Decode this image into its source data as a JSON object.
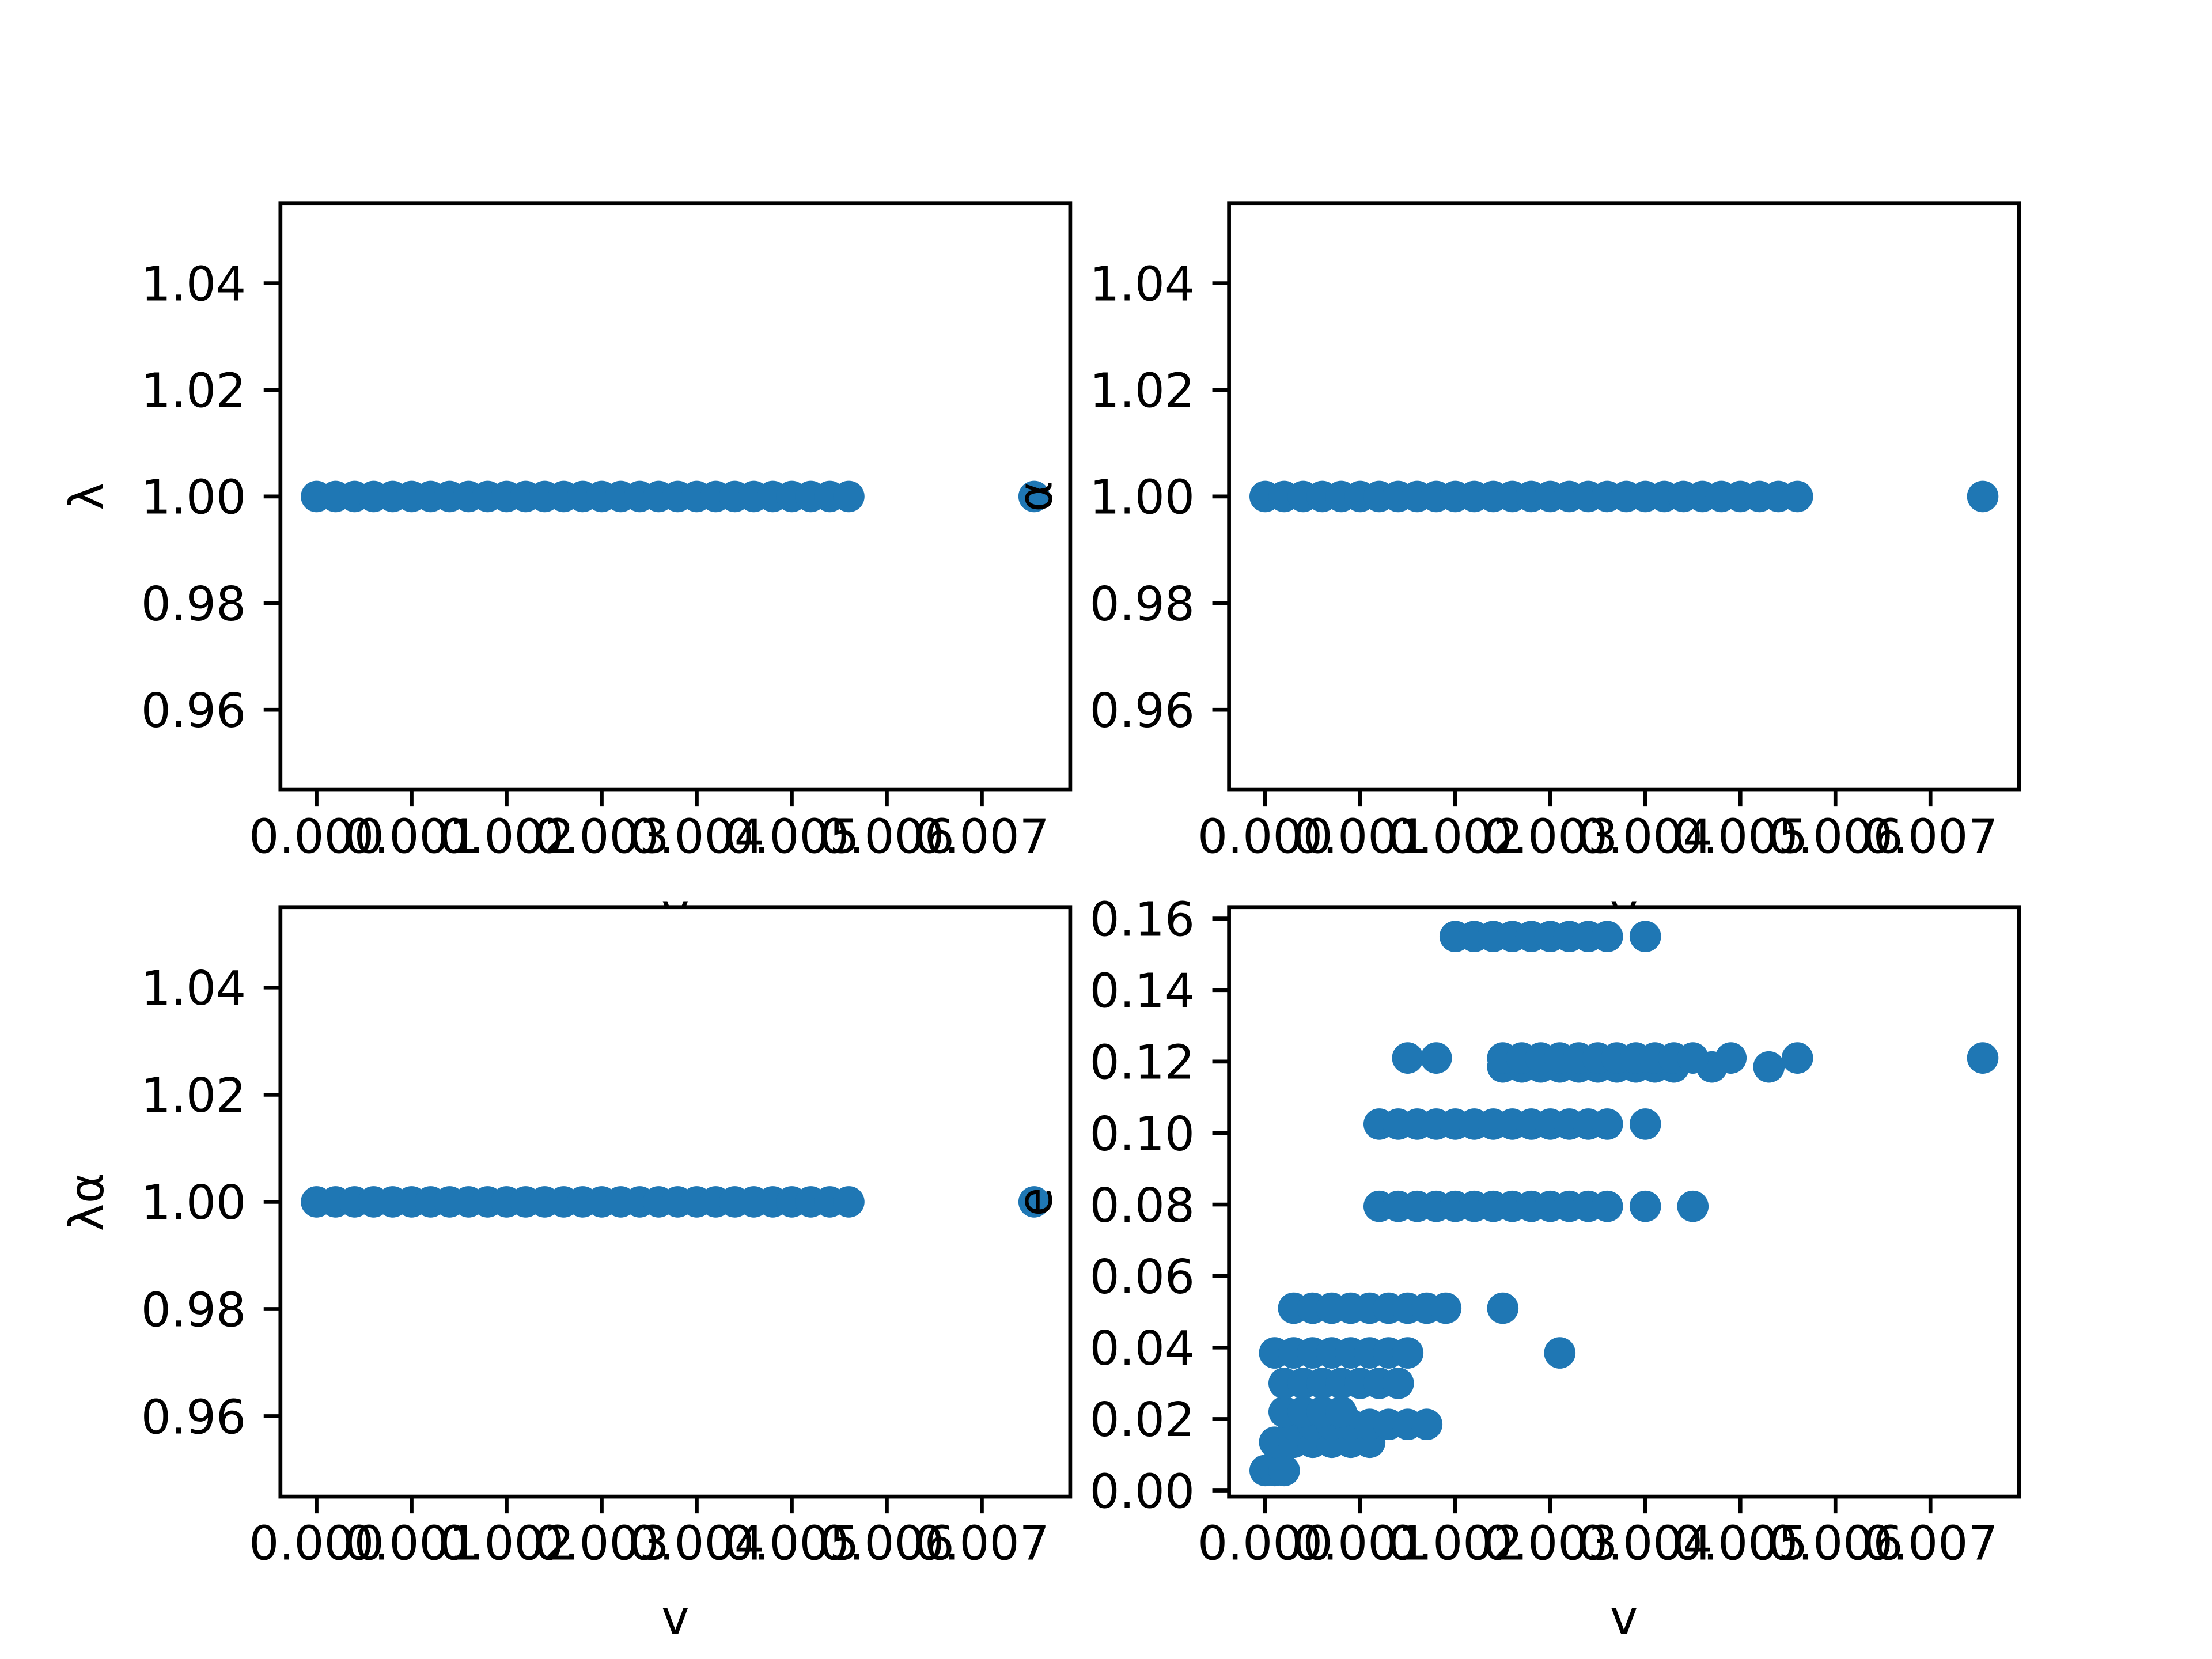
{
  "chart_data": [
    {
      "type": "scatter",
      "xlabel": "v",
      "ylabel": "λ",
      "color": "#1f77b4",
      "x": [
        0,
        0.0002,
        0.0004,
        0.0006,
        0.0008,
        0.001,
        0.0012,
        0.0014,
        0.0016,
        0.0018,
        0.002,
        0.0022,
        0.0024,
        0.0026,
        0.0028,
        0.003,
        0.0032,
        0.0034,
        0.0036,
        0.0038,
        0.004,
        0.0042,
        0.0044,
        0.0046,
        0.0048,
        0.005,
        0.0052,
        0.0054,
        0.0056,
        0.00755
      ],
      "y": [
        1,
        1,
        1,
        1,
        1,
        1,
        1,
        1,
        1,
        1,
        1,
        1,
        1,
        1,
        1,
        1,
        1,
        1,
        1,
        1,
        1,
        1,
        1,
        1,
        1,
        1,
        1,
        1,
        1,
        1
      ],
      "xlim": [
        -0.00038,
        0.00793
      ],
      "ylim": [
        0.945,
        1.055
      ],
      "xticks": [
        {
          "value": 0,
          "label": "0.000"
        },
        0.001,
        0.002,
        0.003,
        0.004,
        0.005,
        0.006,
        0.007
      ],
      "yticks": [
        0.96,
        0.98,
        {
          "value": 1,
          "label": "1.00"
        },
        1.02,
        1.04
      ]
    },
    {
      "type": "scatter",
      "xlabel": "v",
      "ylabel": "α",
      "color": "#1f77b4",
      "x": [
        0,
        0.0002,
        0.0004,
        0.0006,
        0.0008,
        0.001,
        0.0012,
        0.0014,
        0.0016,
        0.0018,
        0.002,
        0.0022,
        0.0024,
        0.0026,
        0.0028,
        0.003,
        0.0032,
        0.0034,
        0.0036,
        0.0038,
        0.004,
        0.0042,
        0.0044,
        0.0046,
        0.0048,
        0.005,
        0.0052,
        0.0054,
        0.0056,
        0.00755
      ],
      "y": [
        1,
        1,
        1,
        1,
        1,
        1,
        1,
        1,
        1,
        1,
        1,
        1,
        1,
        1,
        1,
        1,
        1,
        1,
        1,
        1,
        1,
        1,
        1,
        1,
        1,
        1,
        1,
        1,
        1,
        1
      ],
      "xlim": [
        -0.00038,
        0.00793
      ],
      "ylim": [
        0.945,
        1.055
      ],
      "xticks": [
        {
          "value": 0,
          "label": "0.000"
        },
        0.001,
        0.002,
        0.003,
        0.004,
        0.005,
        0.006,
        0.007
      ],
      "yticks": [
        0.96,
        0.98,
        {
          "value": 1,
          "label": "1.00"
        },
        1.02,
        1.04
      ]
    },
    {
      "type": "scatter",
      "xlabel": "v",
      "ylabel": "λα",
      "color": "#1f77b4",
      "x": [
        0,
        0.0002,
        0.0004,
        0.0006,
        0.0008,
        0.001,
        0.0012,
        0.0014,
        0.0016,
        0.0018,
        0.002,
        0.0022,
        0.0024,
        0.0026,
        0.0028,
        0.003,
        0.0032,
        0.0034,
        0.0036,
        0.0038,
        0.004,
        0.0042,
        0.0044,
        0.0046,
        0.0048,
        0.005,
        0.0052,
        0.0054,
        0.0056,
        0.00755
      ],
      "y": [
        1,
        1,
        1,
        1,
        1,
        1,
        1,
        1,
        1,
        1,
        1,
        1,
        1,
        1,
        1,
        1,
        1,
        1,
        1,
        1,
        1,
        1,
        1,
        1,
        1,
        1,
        1,
        1,
        1,
        1
      ],
      "xlim": [
        -0.00038,
        0.00793
      ],
      "ylim": [
        0.945,
        1.055
      ],
      "xticks": [
        {
          "value": 0,
          "label": "0.000"
        },
        0.001,
        0.002,
        0.003,
        0.004,
        0.005,
        0.006,
        0.007
      ],
      "yticks": [
        0.96,
        0.98,
        {
          "value": 1,
          "label": "1.00"
        },
        1.02,
        1.04
      ]
    },
    {
      "type": "scatter",
      "xlabel": "v",
      "ylabel": "e",
      "color": "#1f77b4",
      "x": [
        0,
        0.0001,
        0.0002,
        0.0001,
        0.0003,
        0.0005,
        0.0007,
        0.0009,
        0.0011,
        0.0003,
        0.0005,
        0.0007,
        0.0009,
        0.0011,
        0.0013,
        0.0015,
        0.0017,
        0.0002,
        0.0004,
        0.0006,
        0.0008,
        0.0002,
        0.0004,
        0.0006,
        0.0008,
        0.001,
        0.0012,
        0.0014,
        0.0001,
        0.0003,
        0.0005,
        0.0007,
        0.0009,
        0.0011,
        0.0013,
        0.0015,
        0.0031,
        0.0003,
        0.0005,
        0.0007,
        0.0009,
        0.0011,
        0.0013,
        0.0015,
        0.0017,
        0.0019,
        0.0025,
        0.0012,
        0.0014,
        0.0016,
        0.0018,
        0.002,
        0.0022,
        0.0024,
        0.0026,
        0.0028,
        0.003,
        0.0032,
        0.0034,
        0.0036,
        0.004,
        0.0045,
        0.0012,
        0.0014,
        0.0016,
        0.0018,
        0.002,
        0.0022,
        0.0024,
        0.0026,
        0.0028,
        0.003,
        0.0032,
        0.0034,
        0.0036,
        0.004,
        0.0025,
        0.0027,
        0.0029,
        0.0031,
        0.0033,
        0.0035,
        0.0037,
        0.0039,
        0.0041,
        0.0043,
        0.0047,
        0.0053,
        0.0015,
        0.0018,
        0.0025,
        0.0027,
        0.0029,
        0.0031,
        0.0033,
        0.0035,
        0.0037,
        0.0039,
        0.0041,
        0.0043,
        0.0045,
        0.0049,
        0.0056,
        0.00755,
        0.002,
        0.0022,
        0.0024,
        0.0026,
        0.0028,
        0.003,
        0.0032,
        0.0034,
        0.0036,
        0.004
      ],
      "y": [
        0.0056,
        0.0056,
        0.0056,
        0.0135,
        0.0135,
        0.0135,
        0.0135,
        0.0135,
        0.0135,
        0.0185,
        0.0185,
        0.0185,
        0.0185,
        0.0185,
        0.0185,
        0.0185,
        0.0185,
        0.022,
        0.022,
        0.022,
        0.022,
        0.03,
        0.03,
        0.03,
        0.03,
        0.03,
        0.03,
        0.03,
        0.0385,
        0.0385,
        0.0385,
        0.0385,
        0.0385,
        0.0385,
        0.0385,
        0.0385,
        0.0385,
        0.051,
        0.051,
        0.051,
        0.051,
        0.051,
        0.051,
        0.051,
        0.051,
        0.051,
        0.051,
        0.0795,
        0.0795,
        0.0795,
        0.0795,
        0.0795,
        0.0795,
        0.0795,
        0.0795,
        0.0795,
        0.0795,
        0.0795,
        0.0795,
        0.0795,
        0.0795,
        0.0795,
        0.1025,
        0.1025,
        0.1025,
        0.1025,
        0.1025,
        0.1025,
        0.1025,
        0.1025,
        0.1025,
        0.1025,
        0.1025,
        0.1025,
        0.1025,
        0.1025,
        0.1185,
        0.1185,
        0.1185,
        0.1185,
        0.1185,
        0.1185,
        0.1185,
        0.1185,
        0.1185,
        0.1185,
        0.1185,
        0.1185,
        0.121,
        0.121,
        0.121,
        0.121,
        0.121,
        0.121,
        0.121,
        0.121,
        0.121,
        0.121,
        0.121,
        0.121,
        0.121,
        0.121,
        0.121,
        0.121,
        0.155,
        0.155,
        0.155,
        0.155,
        0.155,
        0.155,
        0.155,
        0.155,
        0.155,
        0.155
      ],
      "xlim": [
        -0.00038,
        0.00793
      ],
      "ylim": [
        -0.0017,
        0.1632
      ],
      "xticks": [
        {
          "value": 0,
          "label": "0.000"
        },
        0.001,
        0.002,
        0.003,
        0.004,
        0.005,
        0.006,
        0.007
      ],
      "yticks": [
        {
          "value": 0,
          "label": "0.00"
        },
        0.02,
        0.04,
        0.06,
        0.08,
        {
          "value": 0.1,
          "label": "0.10"
        },
        0.12,
        0.14,
        0.16
      ]
    }
  ]
}
